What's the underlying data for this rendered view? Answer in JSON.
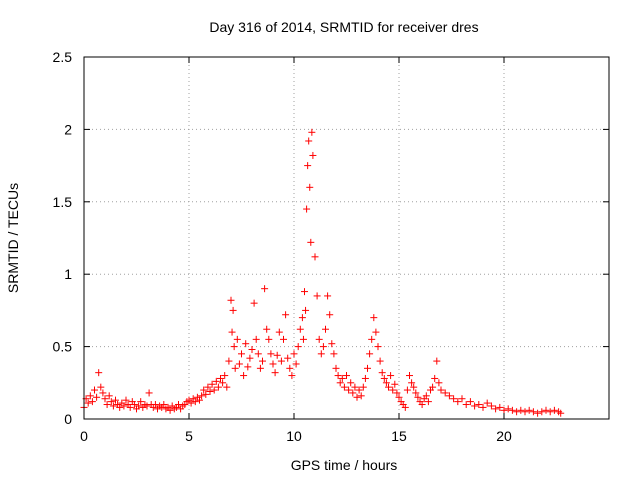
{
  "chart_data": {
    "type": "scatter",
    "title": "Day 316 of 2014, SRMTID for receiver dres",
    "xlabel": "GPS time / hours",
    "ylabel": "SRMTID / TECUs",
    "xlim": [
      0,
      25
    ],
    "ylim": [
      0,
      2.5
    ],
    "xticks": [
      0,
      5,
      10,
      15,
      20
    ],
    "yticks": [
      0,
      0.5,
      1,
      1.5,
      2,
      2.5
    ],
    "xtick_labels": [
      "0",
      "5",
      "10",
      "15",
      "20"
    ],
    "ytick_labels": [
      "0",
      "0.5",
      "1",
      "1.5",
      "2",
      "2.5"
    ],
    "grid": true,
    "marker": "plus",
    "color": "#ff0000",
    "series": [
      {
        "name": "SRMTID",
        "x": [
          0.0,
          0.1,
          0.2,
          0.3,
          0.4,
          0.5,
          0.6,
          0.7,
          0.8,
          0.9,
          1.0,
          1.1,
          1.2,
          1.3,
          1.4,
          1.5,
          1.6,
          1.7,
          1.8,
          1.9,
          2.0,
          2.1,
          2.2,
          2.3,
          2.4,
          2.5,
          2.6,
          2.7,
          2.8,
          2.9,
          3.0,
          3.1,
          3.2,
          3.3,
          3.4,
          3.5,
          3.6,
          3.7,
          3.8,
          3.9,
          4.0,
          4.1,
          4.2,
          4.3,
          4.4,
          4.5,
          4.6,
          4.7,
          4.8,
          4.9,
          5.0,
          5.1,
          5.2,
          5.3,
          5.4,
          5.5,
          5.6,
          5.7,
          5.8,
          5.9,
          6.0,
          6.1,
          6.2,
          6.3,
          6.4,
          6.5,
          6.6,
          6.7,
          6.8,
          6.9,
          7.0,
          7.05,
          7.1,
          7.15,
          7.2,
          7.3,
          7.4,
          7.5,
          7.6,
          7.7,
          7.8,
          7.9,
          8.0,
          8.1,
          8.2,
          8.3,
          8.4,
          8.5,
          8.6,
          8.7,
          8.8,
          8.9,
          9.0,
          9.1,
          9.2,
          9.3,
          9.4,
          9.5,
          9.6,
          9.7,
          9.8,
          9.9,
          10.0,
          10.1,
          10.2,
          10.3,
          10.4,
          10.45,
          10.5,
          10.55,
          10.6,
          10.65,
          10.7,
          10.75,
          10.8,
          10.85,
          10.9,
          11.0,
          11.1,
          11.2,
          11.3,
          11.4,
          11.5,
          11.6,
          11.7,
          11.8,
          11.9,
          12.0,
          12.1,
          12.2,
          12.3,
          12.4,
          12.5,
          12.6,
          12.7,
          12.8,
          12.9,
          13.0,
          13.1,
          13.2,
          13.3,
          13.4,
          13.5,
          13.6,
          13.7,
          13.8,
          13.9,
          14.0,
          14.1,
          14.2,
          14.3,
          14.4,
          14.5,
          14.6,
          14.7,
          14.8,
          14.9,
          15.0,
          15.1,
          15.2,
          15.3,
          15.4,
          15.5,
          15.6,
          15.7,
          15.8,
          15.9,
          16.0,
          16.1,
          16.2,
          16.3,
          16.4,
          16.5,
          16.6,
          16.7,
          16.8,
          16.9,
          17.0,
          17.2,
          17.4,
          17.6,
          17.8,
          18.0,
          18.2,
          18.4,
          18.6,
          18.8,
          19.0,
          19.2,
          19.4,
          19.6,
          19.8,
          20.0,
          20.2,
          20.4,
          20.6,
          20.8,
          21.0,
          21.2,
          21.4,
          21.6,
          21.8,
          22.0,
          22.2,
          22.4,
          22.6,
          22.7
        ],
        "y": [
          0.08,
          0.14,
          0.11,
          0.16,
          0.12,
          0.2,
          0.15,
          0.32,
          0.22,
          0.18,
          0.14,
          0.1,
          0.16,
          0.12,
          0.09,
          0.13,
          0.1,
          0.08,
          0.11,
          0.09,
          0.13,
          0.1,
          0.08,
          0.12,
          0.1,
          0.07,
          0.09,
          0.12,
          0.08,
          0.1,
          0.09,
          0.18,
          0.1,
          0.08,
          0.1,
          0.07,
          0.09,
          0.08,
          0.1,
          0.07,
          0.08,
          0.06,
          0.09,
          0.07,
          0.08,
          0.1,
          0.07,
          0.09,
          0.1,
          0.12,
          0.13,
          0.11,
          0.14,
          0.12,
          0.15,
          0.13,
          0.16,
          0.2,
          0.17,
          0.22,
          0.19,
          0.24,
          0.2,
          0.26,
          0.22,
          0.28,
          0.25,
          0.3,
          0.22,
          0.4,
          0.82,
          0.6,
          0.75,
          0.5,
          0.35,
          0.55,
          0.38,
          0.45,
          0.3,
          0.52,
          0.36,
          0.42,
          0.48,
          0.8,
          0.55,
          0.45,
          0.35,
          0.4,
          0.9,
          0.62,
          0.55,
          0.45,
          0.38,
          0.32,
          0.44,
          0.6,
          0.4,
          0.55,
          0.72,
          0.42,
          0.35,
          0.3,
          0.45,
          0.38,
          0.5,
          0.62,
          0.7,
          0.55,
          0.88,
          0.75,
          1.45,
          1.75,
          1.92,
          1.6,
          1.22,
          1.98,
          1.82,
          1.12,
          0.85,
          0.55,
          0.45,
          0.5,
          0.62,
          0.85,
          0.72,
          0.52,
          0.45,
          0.35,
          0.3,
          0.25,
          0.28,
          0.22,
          0.3,
          0.2,
          0.25,
          0.18,
          0.22,
          0.15,
          0.2,
          0.16,
          0.22,
          0.28,
          0.35,
          0.45,
          0.55,
          0.7,
          0.6,
          0.5,
          0.4,
          0.32,
          0.28,
          0.25,
          0.22,
          0.3,
          0.2,
          0.24,
          0.18,
          0.15,
          0.12,
          0.1,
          0.08,
          0.2,
          0.3,
          0.25,
          0.22,
          0.18,
          0.15,
          0.12,
          0.1,
          0.14,
          0.16,
          0.12,
          0.2,
          0.22,
          0.28,
          0.4,
          0.25,
          0.2,
          0.18,
          0.16,
          0.14,
          0.12,
          0.14,
          0.1,
          0.12,
          0.09,
          0.1,
          0.08,
          0.11,
          0.09,
          0.07,
          0.08,
          0.06,
          0.07,
          0.06,
          0.05,
          0.06,
          0.05,
          0.06,
          0.05,
          0.04,
          0.05,
          0.06,
          0.05,
          0.06,
          0.05,
          0.04
        ]
      }
    ]
  }
}
